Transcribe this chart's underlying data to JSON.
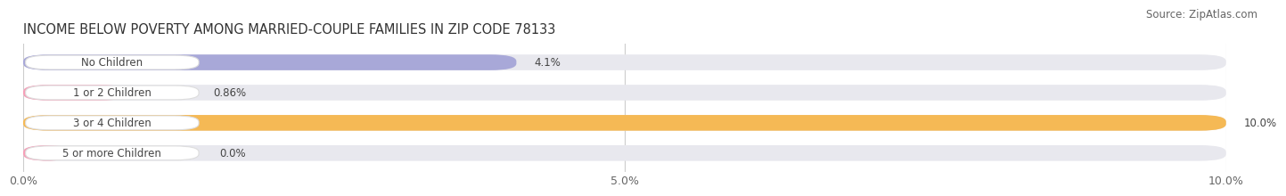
{
  "title": "INCOME BELOW POVERTY AMONG MARRIED-COUPLE FAMILIES IN ZIP CODE 78133",
  "source": "Source: ZipAtlas.com",
  "categories": [
    "No Children",
    "1 or 2 Children",
    "3 or 4 Children",
    "5 or more Children"
  ],
  "values": [
    4.1,
    0.86,
    10.0,
    0.0
  ],
  "bar_colors": [
    "#a8a8d8",
    "#f5a0b8",
    "#f5b955",
    "#f5a0b8"
  ],
  "bar_bg_color": "#e8e8ee",
  "xlim": [
    0,
    10.0
  ],
  "xticks": [
    0.0,
    5.0,
    10.0
  ],
  "xticklabels": [
    "0.0%",
    "5.0%",
    "10.0%"
  ],
  "value_labels": [
    "4.1%",
    "0.86%",
    "10.0%",
    "0.0%"
  ],
  "title_fontsize": 10.5,
  "source_fontsize": 8.5,
  "tick_fontsize": 9,
  "bar_label_fontsize": 8.5,
  "background_color": "#ffffff",
  "grid_color": "#cccccc",
  "min_stub_value": 0.4
}
